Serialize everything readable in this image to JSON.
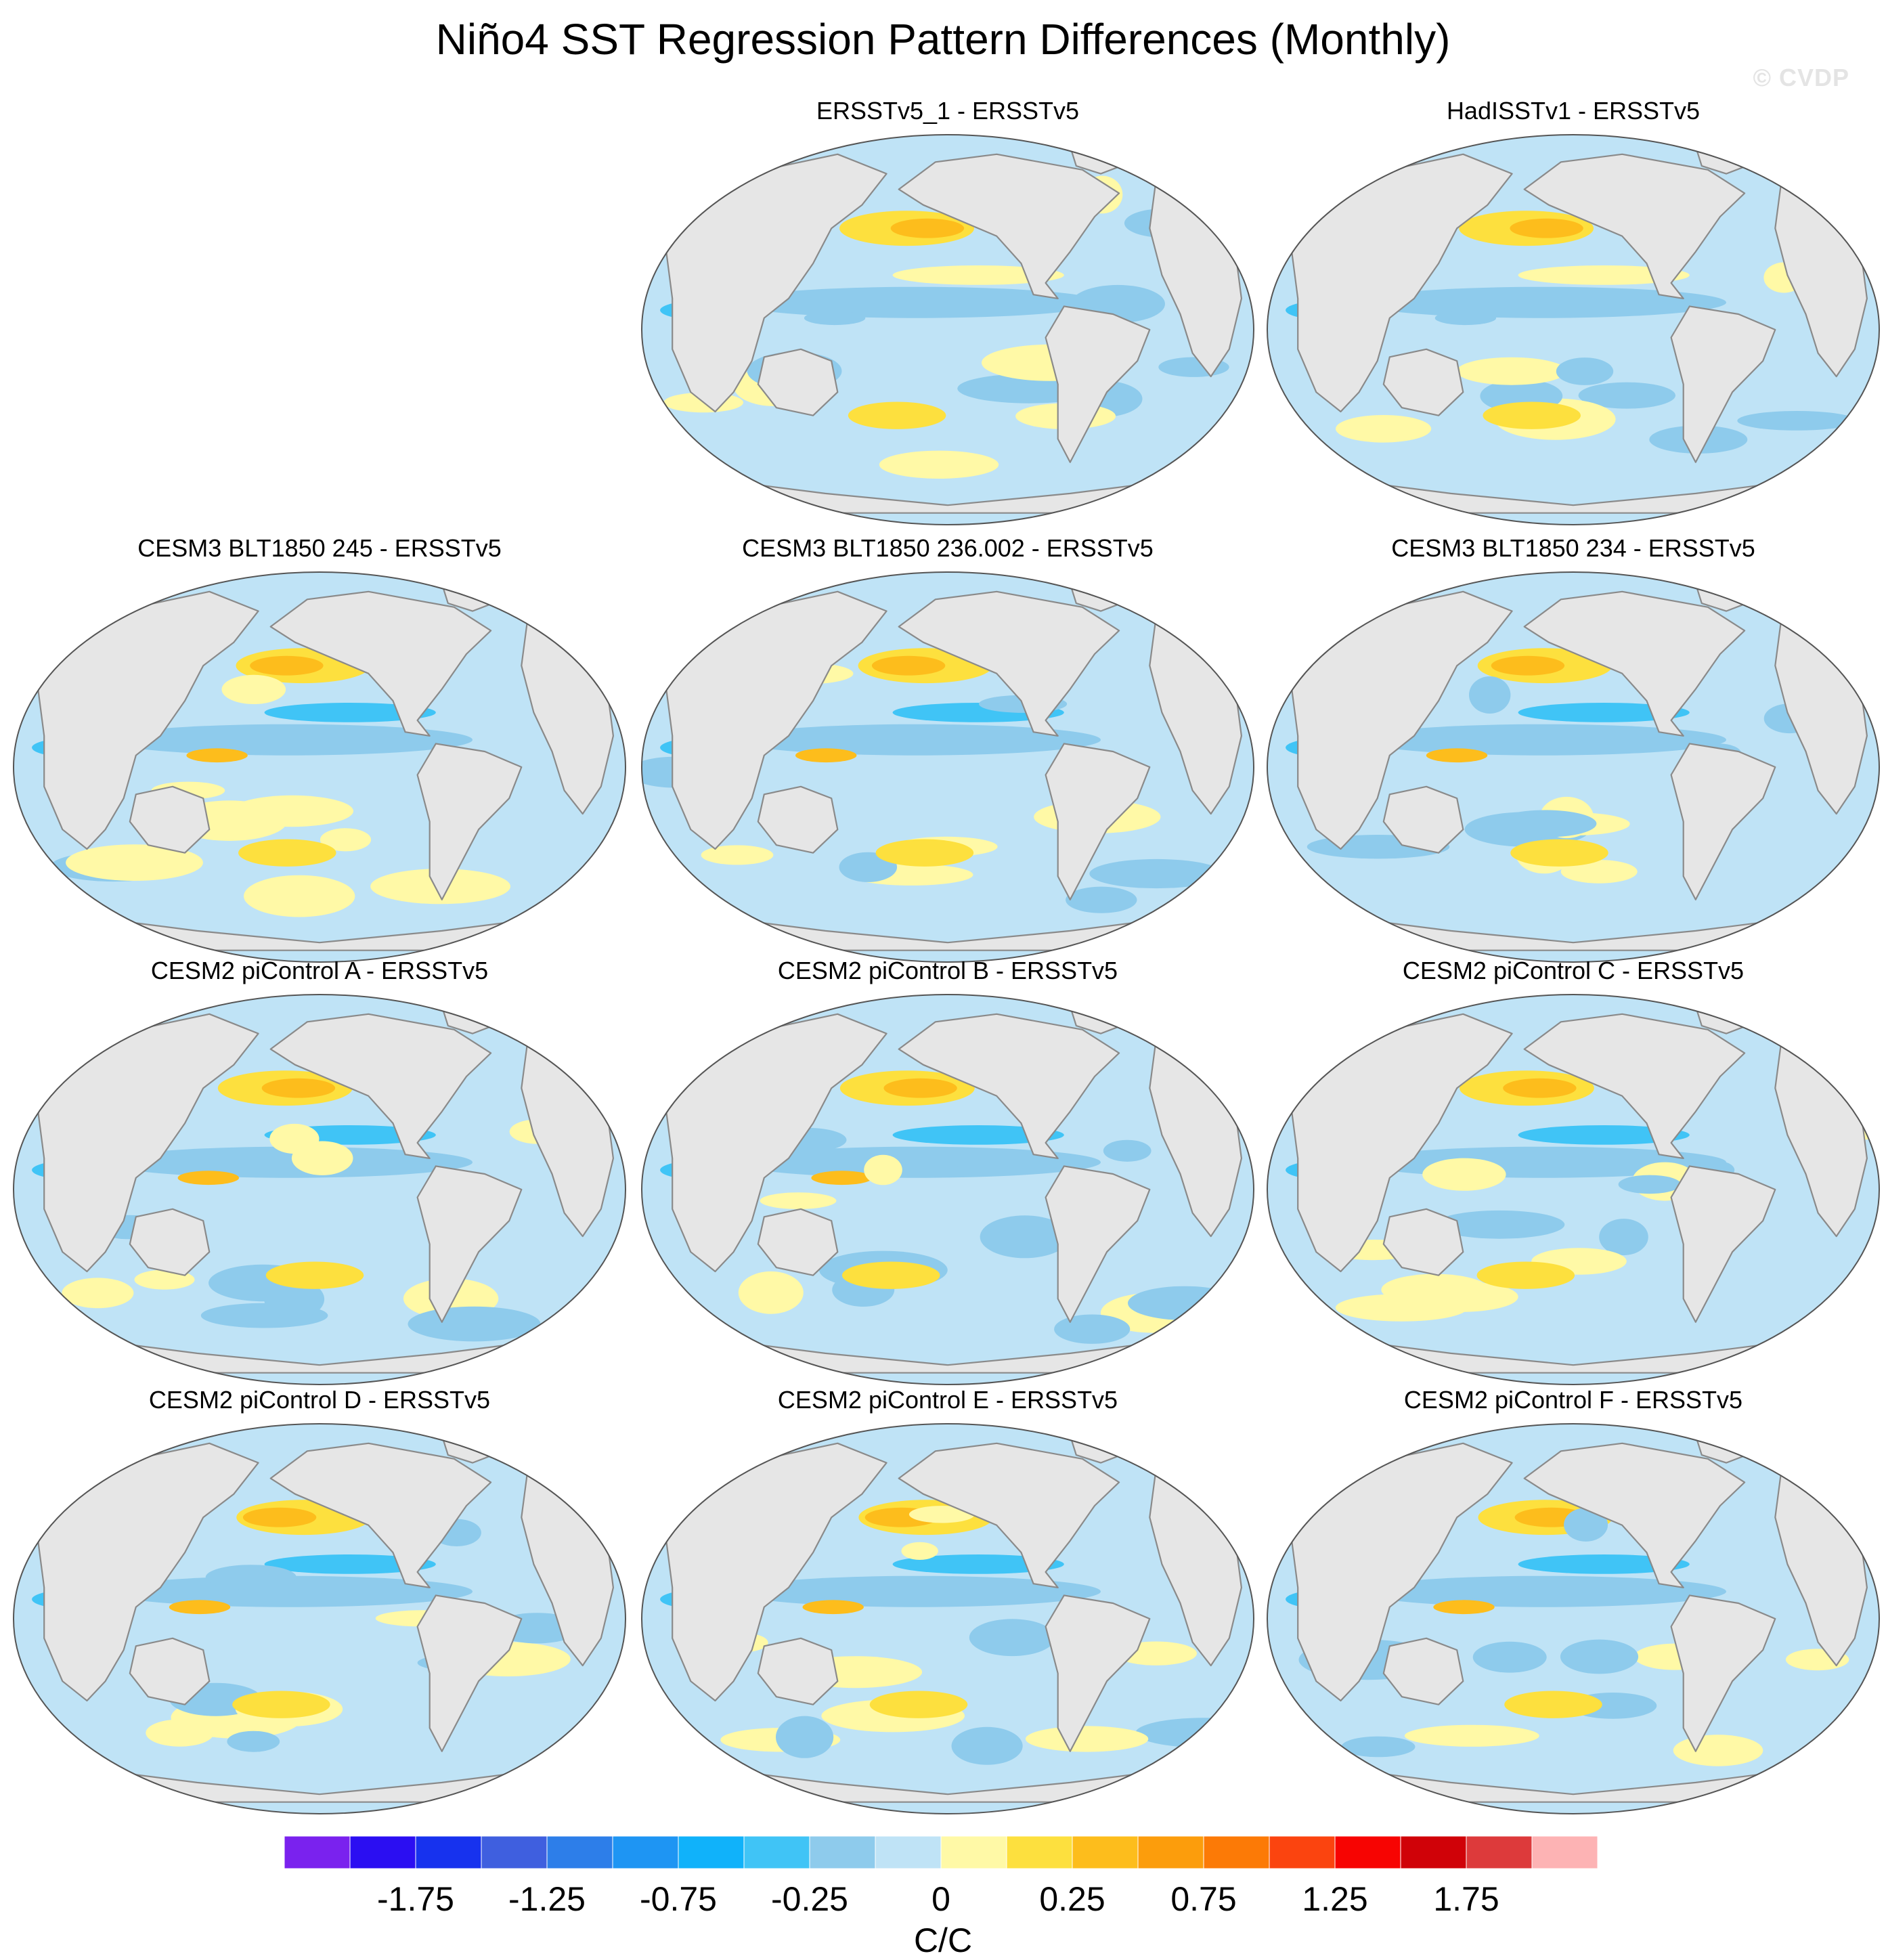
{
  "title": "Niño4 SST Regression Pattern Differences (Monthly)",
  "watermark": "© CVDP",
  "panels": [
    {
      "label": "ERSSTv5_1 - ERSSTv5"
    },
    {
      "label": "HadISSTv1 - ERSSTv5"
    },
    {
      "label": "CESM3 BLT1850 245 - ERSSTv5"
    },
    {
      "label": "CESM3 BLT1850 236.002 - ERSSTv5"
    },
    {
      "label": "CESM3 BLT1850 234 - ERSSTv5"
    },
    {
      "label": "CESM2 piControl A - ERSSTv5"
    },
    {
      "label": "CESM2 piControl B - ERSSTv5"
    },
    {
      "label": "CESM2 piControl C - ERSSTv5"
    },
    {
      "label": "CESM2 piControl D - ERSSTv5"
    },
    {
      "label": "CESM2 piControl E - ERSSTv5"
    },
    {
      "label": "CESM2 piControl F - ERSSTv5"
    }
  ],
  "colorbar": {
    "units": "C/C",
    "colors": [
      "#7a22ee",
      "#2b0ef2",
      "#1732ee",
      "#3f5fdf",
      "#2d7ee9",
      "#1e95f3",
      "#10b2fa",
      "#40c4f6",
      "#8ecbec",
      "#bfe3f6",
      "#fff9a6",
      "#fde03e",
      "#fdbd1c",
      "#fc9d0c",
      "#fc7a06",
      "#fb440f",
      "#f70402",
      "#d00208",
      "#dd3a3b",
      "#fdb3b4"
    ],
    "tick_labels": [
      "-1.75",
      "-1.25",
      "-0.75",
      "-0.25",
      "0",
      "0.25",
      "0.75",
      "1.25",
      "1.75"
    ]
  },
  "map_colors": {
    "land": "#e6e6e6",
    "coast": "#8a8a8a",
    "ocean_base": "#bfe3f6",
    "weak_negative": "#8ecbec",
    "moderate_negative": "#40c4f6",
    "weak_positive": "#fff9a6",
    "moderate_positive": "#fde03e",
    "strong_positive": "#fdbd1c",
    "very_strong_positive": "#fc9d0c"
  }
}
